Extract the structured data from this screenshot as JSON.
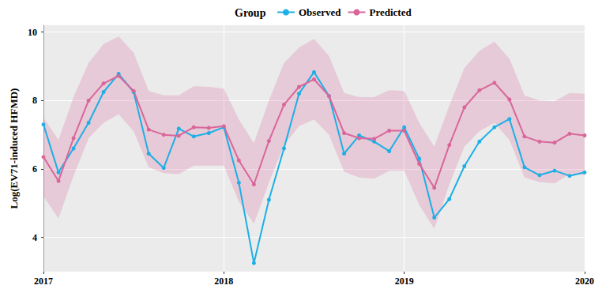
{
  "chart_data": {
    "type": "line",
    "y_label": "Log(EV71-induced HFMD)",
    "legend_title": "Group",
    "legend": "top",
    "grid": true,
    "categories": [
      "2017",
      null,
      null,
      null,
      null,
      null,
      null,
      null,
      null,
      null,
      null,
      null,
      "2018",
      null,
      null,
      null,
      null,
      null,
      null,
      null,
      null,
      null,
      null,
      null,
      "2019",
      null,
      null,
      null,
      null,
      null,
      null,
      null,
      null,
      null,
      null,
      null,
      "2020"
    ],
    "ylim": [
      3.0,
      10.2
    ],
    "yticks": [
      4,
      6,
      8,
      10
    ],
    "series": [
      {
        "name": "Observed",
        "color": "#1DAFE5",
        "marker": "circle",
        "line_style": "solid",
        "values": [
          7.3,
          5.9,
          6.6,
          7.35,
          8.25,
          8.78,
          8.25,
          6.45,
          6.03,
          7.18,
          6.95,
          7.05,
          7.22,
          5.6,
          3.25,
          5.1,
          6.6,
          8.2,
          8.83,
          8.13,
          6.45,
          6.98,
          6.8,
          6.52,
          7.22,
          6.3,
          4.58,
          5.12,
          6.08,
          6.8,
          7.22,
          7.46,
          6.05,
          5.82,
          5.95,
          5.8,
          5.9
        ]
      },
      {
        "name": "Predicted",
        "color": "#D9669A",
        "marker": "circle",
        "line_style": "solid",
        "values": [
          6.35,
          5.65,
          6.9,
          8.0,
          8.5,
          8.72,
          8.28,
          7.15,
          7.0,
          6.97,
          7.22,
          7.2,
          7.25,
          6.25,
          5.55,
          6.82,
          7.88,
          8.4,
          8.62,
          8.13,
          7.05,
          6.9,
          6.88,
          7.12,
          7.12,
          6.15,
          5.45,
          6.7,
          7.8,
          8.3,
          8.52,
          8.03,
          6.95,
          6.8,
          6.77,
          7.03,
          6.98
        ],
        "upper": [
          7.5,
          6.85,
          8.1,
          9.1,
          9.65,
          9.87,
          9.4,
          8.28,
          8.15,
          8.15,
          8.42,
          8.4,
          8.35,
          7.45,
          6.75,
          8.0,
          9.1,
          9.55,
          9.8,
          9.3,
          8.22,
          8.1,
          8.1,
          8.3,
          8.28,
          7.35,
          6.65,
          7.85,
          8.95,
          9.45,
          9.72,
          9.22,
          8.15,
          8.0,
          7.98,
          8.22,
          8.2
        ],
        "lower": [
          5.2,
          4.55,
          5.8,
          6.9,
          7.35,
          7.6,
          7.1,
          6.05,
          5.88,
          5.85,
          6.1,
          6.1,
          6.1,
          5.05,
          4.4,
          5.6,
          6.7,
          7.25,
          7.45,
          7.0,
          5.92,
          5.75,
          5.72,
          5.95,
          5.95,
          4.95,
          4.25,
          5.55,
          6.65,
          7.1,
          7.35,
          6.85,
          5.75,
          5.62,
          5.58,
          5.85,
          5.82
        ]
      }
    ]
  }
}
